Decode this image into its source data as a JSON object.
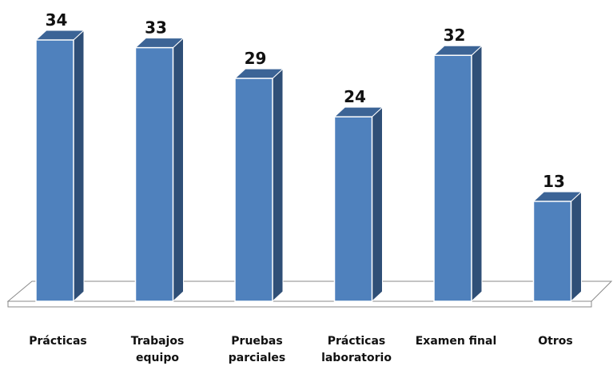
{
  "chart_data": {
    "type": "bar",
    "style": "3d-column",
    "categories": [
      [
        "Prácticas"
      ],
      [
        "Trabajos",
        "equipo"
      ],
      [
        "Pruebas",
        "parciales"
      ],
      [
        "Prácticas",
        "laboratorio"
      ],
      [
        "Examen final"
      ],
      [
        "Otros"
      ]
    ],
    "values": [
      34,
      33,
      29,
      24,
      32,
      13
    ],
    "title": "",
    "xlabel": "",
    "ylabel": "",
    "ylim": [
      0,
      34
    ],
    "grid": false,
    "legend": "none",
    "data_labels": true
  },
  "colors": {
    "bar_front": "#4f81bd",
    "bar_side": "#2f4f77",
    "bar_top": "#3c6496",
    "floor_fill": "#ffffff",
    "floor_stroke": "#8a8a8a",
    "text": "#111111"
  }
}
